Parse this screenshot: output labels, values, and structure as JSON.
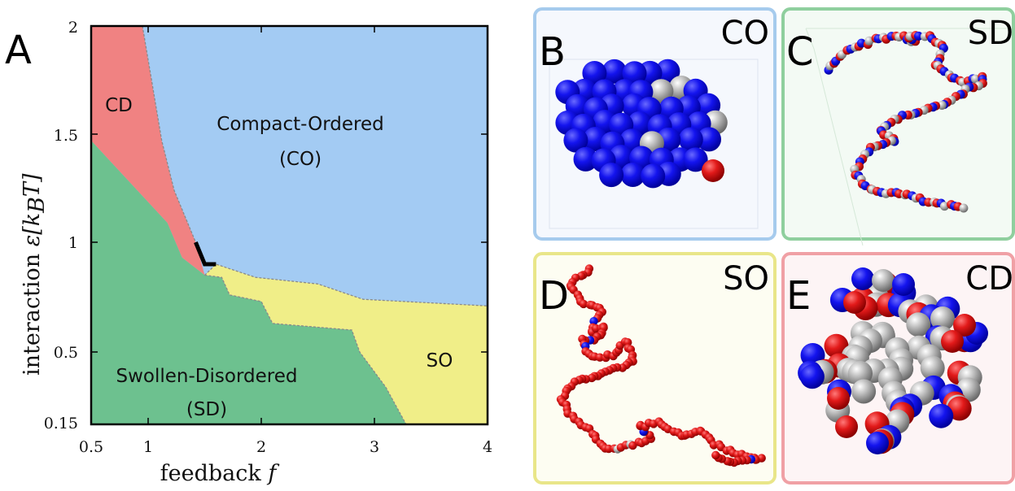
{
  "figure": {
    "panel_a": {
      "letter": "A",
      "chart_data": {
        "type": "area",
        "x_axis": {
          "label": "feedback",
          "symbol": "f",
          "range": [
            0.5,
            4
          ],
          "ticks": [
            "0.5",
            "1",
            "2",
            "3",
            "4"
          ]
        },
        "y_axis": {
          "label": "interaction",
          "symbol": "ε[k",
          "symbol_sub": "B",
          "symbol_end": "T]",
          "range": [
            0.15,
            2
          ],
          "ticks": [
            "0.15",
            "0.5",
            "1",
            "1.5",
            "2"
          ]
        },
        "regions": [
          {
            "key": "CD",
            "label": "CD",
            "color": "#f08282"
          },
          {
            "key": "CO",
            "label": "Compact-Ordered",
            "label2": "(CO)",
            "color": "#a3cbf3"
          },
          {
            "key": "SD",
            "label": "Swollen-Disordered",
            "label2": "(SD)",
            "color": "#6dc18f"
          },
          {
            "key": "SO",
            "label": "SO",
            "color": "#f0ee88"
          }
        ],
        "boundaries": {
          "sd_top": [
            [
              0.5,
              1.47
            ],
            [
              1.17,
              1.09
            ],
            [
              1.3,
              0.93
            ],
            [
              1.5,
              0.85
            ]
          ],
          "sd_so": [
            [
              1.5,
              0.85
            ],
            [
              1.65,
              0.84
            ],
            [
              1.72,
              0.76
            ],
            [
              2.0,
              0.73
            ],
            [
              2.1,
              0.63
            ],
            [
              2.8,
              0.6
            ],
            [
              2.87,
              0.5
            ],
            [
              3.1,
              0.33
            ],
            [
              3.28,
              0.15
            ]
          ],
          "cd_co": [
            [
              0.95,
              2.0
            ],
            [
              1.03,
              1.75
            ],
            [
              1.12,
              1.47
            ],
            [
              1.23,
              1.24
            ],
            [
              1.42,
              1.0
            ]
          ],
          "so_co": [
            [
              1.5,
              0.85
            ],
            [
              1.6,
              0.9
            ],
            [
              1.95,
              0.84
            ],
            [
              2.5,
              0.81
            ],
            [
              2.9,
              0.74
            ],
            [
              4.0,
              0.71
            ]
          ]
        },
        "highlight_line": [
          [
            1.42,
            1.0
          ],
          [
            1.5,
            0.9
          ],
          [
            1.6,
            0.9
          ]
        ]
      }
    },
    "panels": [
      {
        "letter": "B",
        "state": "CO",
        "border": "#a6cbed",
        "bg": "#f5f8fd"
      },
      {
        "letter": "C",
        "state": "SD",
        "border": "#8fcf9e",
        "bg": "#f3faf4"
      },
      {
        "letter": "D",
        "state": "SO",
        "border": "#e9e689",
        "bg": "#fdfdf2"
      },
      {
        "letter": "E",
        "state": "CD",
        "border": "#f0a0a5",
        "bg": "#fdf4f5"
      }
    ],
    "colors": {
      "blue": "#1010e6",
      "red": "#e21a1a",
      "grey": "#a8a8a8"
    }
  }
}
